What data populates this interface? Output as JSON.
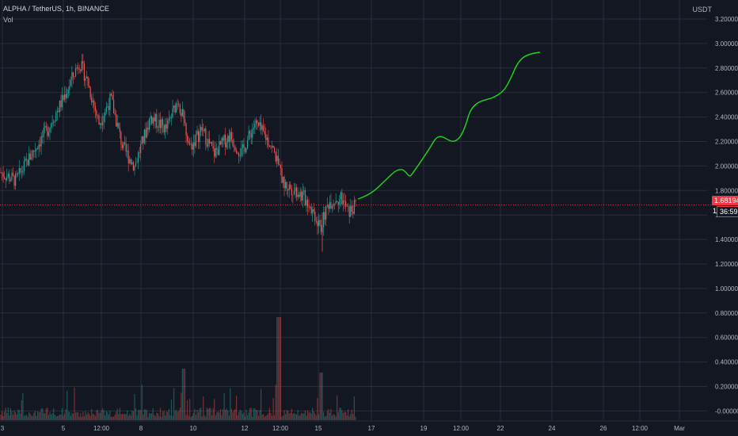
{
  "header": {
    "symbol": "ALPHA / TetherUS, 1h, BINANCE",
    "indicator": "Vol",
    "quote_currency": "USDT"
  },
  "price_tags": {
    "last_price": "1.68194",
    "countdown": "36:59",
    "countdown_prefix": "1."
  },
  "colors": {
    "background": "#131722",
    "up": "#26a69a",
    "down": "#ef5350",
    "projection": "#1fd81f",
    "grid": "#2a2e39",
    "last_price_line": "#f23645"
  },
  "chart_data": {
    "type": "candlestick",
    "price_axis_ticks": [
      "3.20000",
      "3.00000",
      "2.80000",
      "2.60000",
      "2.40000",
      "2.20000",
      "2.00000",
      "1.80000",
      "1.60000",
      "1.40000",
      "1.20000",
      "1.00000",
      "0.80000",
      "0.60000",
      "0.40000",
      "0.20000",
      "-0.00000"
    ],
    "time_axis_ticks": [
      "3",
      "5",
      "12:00",
      "8",
      "10",
      "12",
      "12:00",
      "15",
      "17",
      "19",
      "12:00",
      "22",
      "24",
      "26",
      "12:00",
      "Mar"
    ],
    "price_range": [
      1.3,
      2.95
    ],
    "last_price": 1.68194,
    "volume_spike_label": "large volume bar near 12:00 (Feb 13)",
    "projection_path": [
      {
        "t": "15 end",
        "price": 1.68
      },
      {
        "t": "17",
        "price": 1.8
      },
      {
        "t": "18",
        "price": 1.9
      },
      {
        "t": "18.5",
        "price": 1.88
      },
      {
        "t": "19",
        "price": 2.05
      },
      {
        "t": "19.5",
        "price": 2.2
      },
      {
        "t": "20",
        "price": 2.18
      },
      {
        "t": "20.5",
        "price": 2.42
      },
      {
        "t": "21",
        "price": 2.5
      },
      {
        "t": "22",
        "price": 2.62
      },
      {
        "t": "23",
        "price": 2.92
      },
      {
        "t": "24",
        "price": 2.94
      }
    ]
  }
}
